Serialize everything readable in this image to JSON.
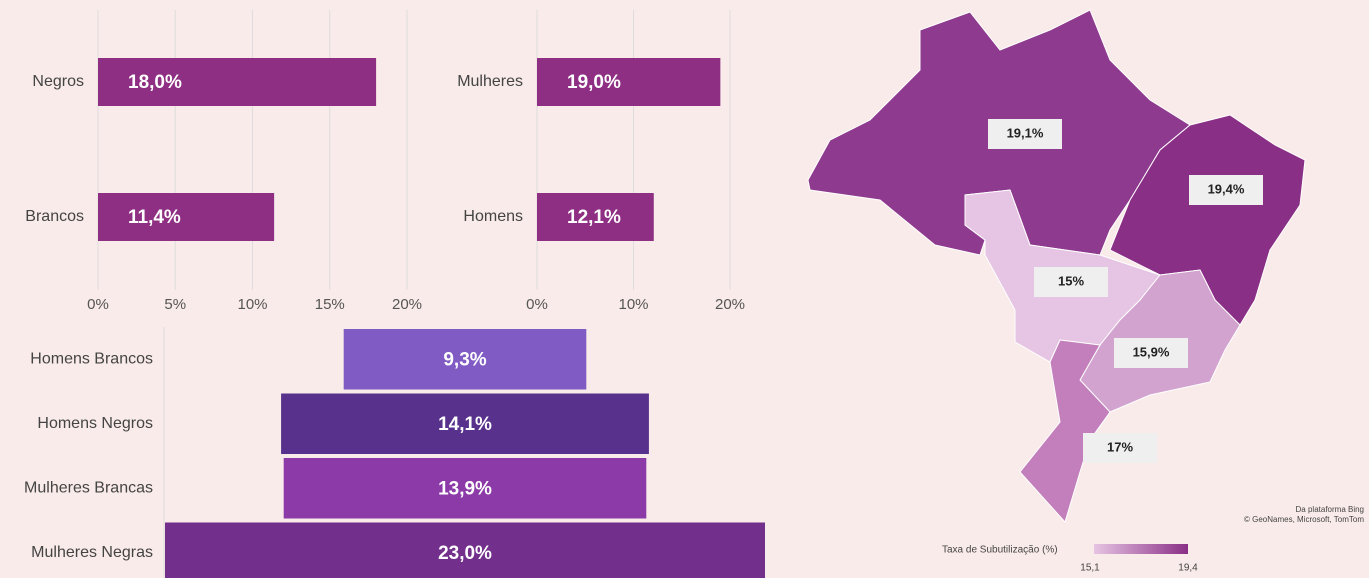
{
  "chart_data": [
    {
      "type": "bar",
      "orientation": "horizontal",
      "categories": [
        "Negros",
        "Brancos"
      ],
      "values": [
        18.0,
        11.4
      ],
      "value_labels": [
        "18,0%",
        "11,4%"
      ],
      "color": "#8e2f84",
      "xlim": [
        0,
        20
      ],
      "xticks": [
        {
          "value": 0,
          "label": "0%"
        },
        {
          "value": 5,
          "label": "5%"
        },
        {
          "value": 10,
          "label": "10%"
        },
        {
          "value": 15,
          "label": "15%"
        },
        {
          "value": 20,
          "label": "20%"
        }
      ],
      "grid": true
    },
    {
      "type": "bar",
      "orientation": "horizontal",
      "categories": [
        "Mulheres",
        "Homens"
      ],
      "values": [
        19.0,
        12.1
      ],
      "value_labels": [
        "19,0%",
        "12,1%"
      ],
      "color": "#8e2f84",
      "xlim": [
        0,
        20
      ],
      "xticks": [
        {
          "value": 0,
          "label": "0%"
        },
        {
          "value": 10,
          "label": "10%"
        },
        {
          "value": 20,
          "label": "20%"
        }
      ],
      "grid": true
    },
    {
      "type": "funnel",
      "categories": [
        "Homens Brancos",
        "Homens Negros",
        "Mulheres Brancas",
        "Mulheres Negras"
      ],
      "values": [
        9.3,
        14.1,
        13.9,
        23.0
      ],
      "value_labels": [
        "9,3%",
        "14,1%",
        "13,9%",
        "23,0%"
      ],
      "colors": [
        "#7f5bc3",
        "#57318c",
        "#8b3aa8",
        "#732f8c"
      ]
    },
    {
      "type": "map",
      "values": [
        19.1,
        19.4,
        15,
        15.9,
        17
      ],
      "value_labels": [
        "19,1%",
        "19,4%",
        "15%",
        "15,9%",
        "17%"
      ],
      "colors": [
        "#8e3a8e",
        "#8a2f86",
        "#e6c4e3",
        "#d3a3cf",
        "#c27fbb"
      ],
      "legend": {
        "title": "Taxa de Subutilização (%)",
        "min": {
          "value": 15.1,
          "label": "15,1"
        },
        "max": {
          "value": 19.4,
          "label": "19,4"
        },
        "min_color": "#e6c4e3",
        "max_color": "#8a2f86"
      },
      "attribution": [
        "Da plataforma Bing",
        "© GeoNames, Microsoft, TomTom"
      ]
    }
  ]
}
